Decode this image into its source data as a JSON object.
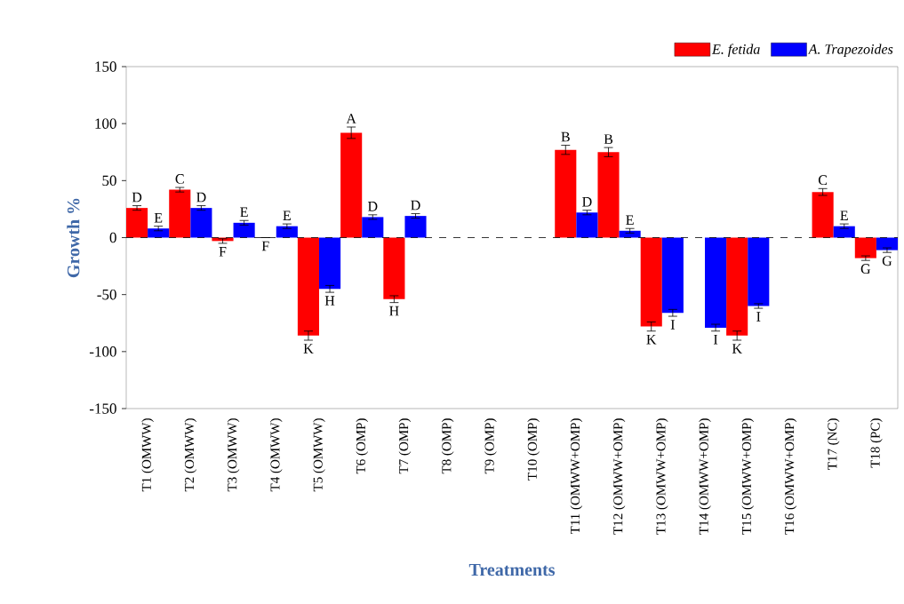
{
  "chart_data": {
    "type": "bar",
    "xlabel": "Treatments",
    "ylabel": "Growth %",
    "categories": [
      "T1 (OMWW)",
      "T2 (OMWW)",
      "T3 (OMWW)",
      "T4 (OMWW)",
      "T5 (OMWW)",
      "T6 (OMP)",
      "T7 (OMP)",
      "T8 (OMP)",
      "T9 (OMP)",
      "T10 (OMP)",
      "T11 (OMWW+OMP)",
      "T12 (OMWW+OMP)",
      "T13 (OMWW+OMP)",
      "T14 (OMWW+OMP)",
      "T15 (OMWW+OMP)",
      "T16 (OMWW+OMP)",
      "T17 (NC)",
      "T18 (PC)"
    ],
    "series": [
      {
        "name": "E. fetida",
        "color": "#ff0000",
        "values": [
          26,
          42,
          -3,
          0,
          -86,
          92,
          -54,
          null,
          null,
          null,
          77,
          75,
          -78,
          null,
          -86,
          null,
          40,
          -18
        ],
        "errors": [
          2,
          2,
          2,
          null,
          4,
          5,
          3,
          null,
          null,
          null,
          4,
          4,
          4,
          null,
          4,
          null,
          3,
          2
        ],
        "value_labels": [
          "D",
          "C",
          "F",
          "F",
          "K",
          "A",
          "H",
          null,
          null,
          null,
          "B",
          "B",
          "K",
          null,
          "K",
          null,
          "C",
          "G"
        ]
      },
      {
        "name": "A. Trapezoides",
        "color": "#0000ff",
        "values": [
          8,
          26,
          13,
          10,
          -45,
          18,
          19,
          null,
          null,
          null,
          22,
          6,
          -66,
          -79,
          -60,
          null,
          10,
          -11
        ],
        "errors": [
          2,
          2,
          2,
          2,
          3,
          2,
          2,
          null,
          null,
          null,
          2,
          2,
          3,
          3,
          2,
          null,
          2,
          2
        ],
        "value_labels": [
          "E",
          "D",
          "E",
          "E",
          "H",
          "D",
          "D",
          null,
          null,
          null,
          "D",
          "E",
          "I",
          "I",
          "I",
          null,
          "E",
          "G"
        ]
      }
    ],
    "ylim": [
      -150,
      150
    ],
    "yticks": [
      -150,
      -100,
      -50,
      0,
      50,
      100,
      150
    ],
    "ref_lines": [
      {
        "axis": "y",
        "value": 0,
        "line_style": "dashed"
      }
    ],
    "legend": "top right",
    "grid": false
  }
}
